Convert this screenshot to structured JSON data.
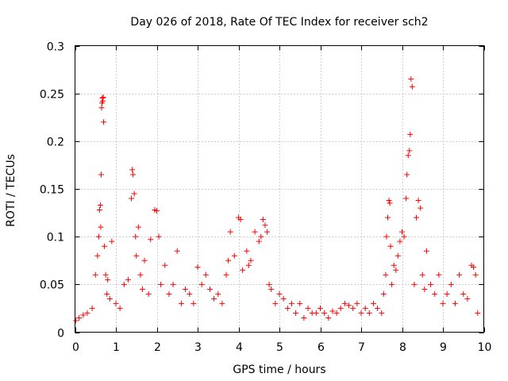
{
  "chart_data": {
    "type": "scatter",
    "title": "Day 026 of 2018, Rate Of TEC Index for receiver sch2",
    "xlabel": "GPS time / hours",
    "ylabel": "ROTI / TECUs",
    "xlim": [
      0,
      10
    ],
    "ylim": [
      0,
      0.3
    ],
    "xticks": [
      0,
      1,
      2,
      3,
      4,
      5,
      6,
      7,
      8,
      9,
      10
    ],
    "yticks": [
      0,
      0.05,
      0.1,
      0.15,
      0.2,
      0.25,
      0.3
    ],
    "xtick_labels": [
      "0",
      "1",
      "2",
      "3",
      "4",
      "5",
      "6",
      "7",
      "8",
      "9",
      "10"
    ],
    "ytick_labels": [
      "0",
      "0.05",
      "0.1",
      "0.15",
      "0.2",
      "0.25",
      "0.3"
    ],
    "grid": true,
    "marker": "+",
    "marker_color": "#ff0000",
    "series": [
      {
        "name": "ROTI",
        "x": [
          0.02,
          0.1,
          0.2,
          0.3,
          0.42,
          0.5,
          0.55,
          0.58,
          0.6,
          0.62,
          0.63,
          0.64,
          0.65,
          0.66,
          0.67,
          0.68,
          0.69,
          0.7,
          0.72,
          0.75,
          0.78,
          0.8,
          0.85,
          0.9,
          1.0,
          1.1,
          1.2,
          1.3,
          1.38,
          1.4,
          1.42,
          1.45,
          1.48,
          1.5,
          1.55,
          1.6,
          1.65,
          1.7,
          1.8,
          1.85,
          1.95,
          2.0,
          2.05,
          2.1,
          2.2,
          2.3,
          2.4,
          2.5,
          2.6,
          2.7,
          2.8,
          2.9,
          3.0,
          3.1,
          3.2,
          3.3,
          3.4,
          3.5,
          3.6,
          3.7,
          3.75,
          3.8,
          3.9,
          4.0,
          4.05,
          4.1,
          4.2,
          4.25,
          4.3,
          4.4,
          4.5,
          4.55,
          4.6,
          4.65,
          4.7,
          4.75,
          4.8,
          4.9,
          5.0,
          5.1,
          5.2,
          5.3,
          5.4,
          5.5,
          5.6,
          5.7,
          5.8,
          5.9,
          6.0,
          6.1,
          6.2,
          6.3,
          6.4,
          6.5,
          6.6,
          6.7,
          6.8,
          6.9,
          7.0,
          7.1,
          7.2,
          7.3,
          7.4,
          7.5,
          7.55,
          7.6,
          7.62,
          7.65,
          7.68,
          7.7,
          7.72,
          7.75,
          7.8,
          7.85,
          7.9,
          7.95,
          8.0,
          8.05,
          8.1,
          8.12,
          8.15,
          8.18,
          8.2,
          8.22,
          8.25,
          8.3,
          8.35,
          8.4,
          8.45,
          8.5,
          8.55,
          8.6,
          8.7,
          8.8,
          8.9,
          9.0,
          9.1,
          9.2,
          9.3,
          9.4,
          9.5,
          9.6,
          9.7,
          9.75,
          9.8,
          9.85
        ],
        "y": [
          0.012,
          0.015,
          0.018,
          0.02,
          0.025,
          0.06,
          0.08,
          0.1,
          0.128,
          0.133,
          0.11,
          0.165,
          0.235,
          0.24,
          0.245,
          0.242,
          0.246,
          0.22,
          0.09,
          0.06,
          0.04,
          0.055,
          0.035,
          0.095,
          0.03,
          0.025,
          0.05,
          0.055,
          0.14,
          0.17,
          0.165,
          0.145,
          0.1,
          0.08,
          0.11,
          0.06,
          0.045,
          0.075,
          0.04,
          0.097,
          0.128,
          0.127,
          0.1,
          0.05,
          0.07,
          0.04,
          0.05,
          0.085,
          0.03,
          0.045,
          0.04,
          0.03,
          0.068,
          0.05,
          0.06,
          0.045,
          0.035,
          0.04,
          0.03,
          0.06,
          0.075,
          0.105,
          0.08,
          0.12,
          0.118,
          0.065,
          0.085,
          0.07,
          0.075,
          0.105,
          0.095,
          0.1,
          0.118,
          0.112,
          0.105,
          0.05,
          0.045,
          0.03,
          0.04,
          0.035,
          0.025,
          0.03,
          0.02,
          0.03,
          0.015,
          0.025,
          0.02,
          0.02,
          0.025,
          0.02,
          0.015,
          0.022,
          0.02,
          0.025,
          0.03,
          0.028,
          0.025,
          0.03,
          0.02,
          0.025,
          0.02,
          0.03,
          0.025,
          0.02,
          0.04,
          0.06,
          0.1,
          0.12,
          0.138,
          0.135,
          0.09,
          0.05,
          0.07,
          0.065,
          0.08,
          0.095,
          0.105,
          0.1,
          0.14,
          0.165,
          0.185,
          0.19,
          0.207,
          0.265,
          0.257,
          0.05,
          0.12,
          0.138,
          0.13,
          0.06,
          0.045,
          0.085,
          0.05,
          0.04,
          0.06,
          0.03,
          0.04,
          0.05,
          0.03,
          0.06,
          0.04,
          0.035,
          0.07,
          0.068,
          0.06,
          0.02
        ]
      }
    ]
  }
}
